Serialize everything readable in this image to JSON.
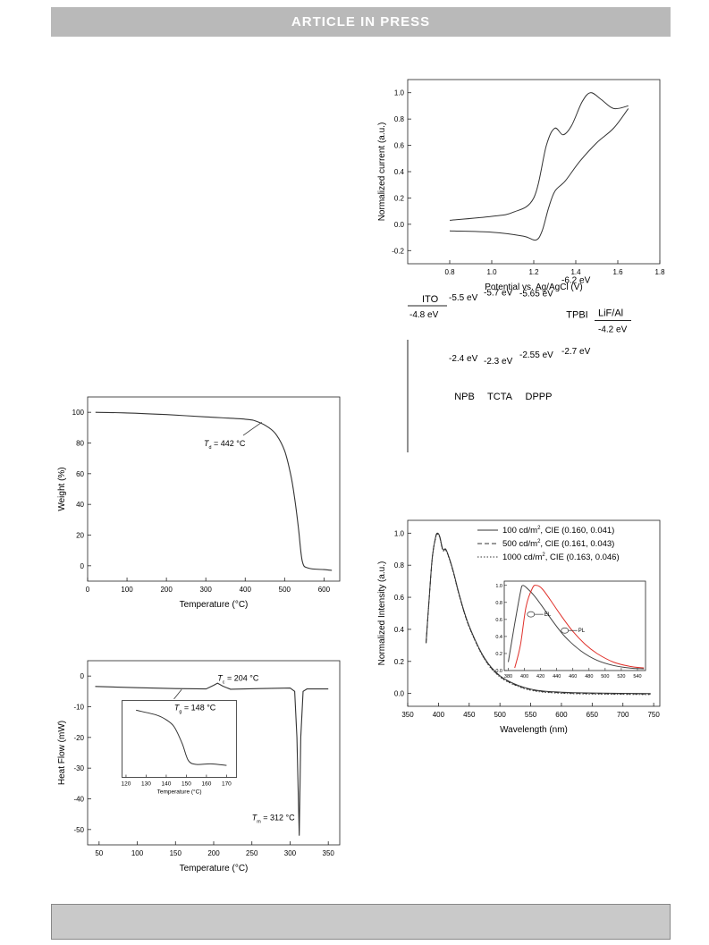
{
  "header": {
    "banner": "ARTICLE IN PRESS"
  },
  "charts": {
    "cv": {
      "type": "line",
      "xlabel": "Potential vs. Ag/AgCl (V)",
      "ylabel": "Normalized current (a.u.)",
      "xlim": [
        0.6,
        1.8
      ],
      "ylim": [
        -0.3,
        1.1
      ],
      "xticks": [
        "0.8",
        "1.0",
        "1.2",
        "1.4",
        "1.6",
        "1.8"
      ],
      "yticks": [
        "-0.2",
        "0.0",
        "0.2",
        "0.4",
        "0.6",
        "0.8",
        "1.0"
      ],
      "series": [
        {
          "values": [
            [
              0.8,
              0.03
            ],
            [
              1.0,
              0.06
            ],
            [
              1.1,
              0.09
            ],
            [
              1.2,
              0.2
            ],
            [
              1.26,
              0.6
            ],
            [
              1.3,
              0.73
            ],
            [
              1.34,
              0.68
            ],
            [
              1.38,
              0.75
            ],
            [
              1.43,
              0.93
            ],
            [
              1.47,
              1.0
            ],
            [
              1.52,
              0.95
            ],
            [
              1.58,
              0.88
            ],
            [
              1.65,
              0.9
            ]
          ]
        },
        {
          "values": [
            [
              1.65,
              0.88
            ],
            [
              1.58,
              0.73
            ],
            [
              1.5,
              0.62
            ],
            [
              1.42,
              0.48
            ],
            [
              1.35,
              0.33
            ],
            [
              1.3,
              0.25
            ],
            [
              1.27,
              0.12
            ],
            [
              1.24,
              -0.05
            ],
            [
              1.21,
              -0.12
            ],
            [
              1.15,
              -0.09
            ],
            [
              1.0,
              -0.06
            ],
            [
              0.8,
              -0.05
            ]
          ]
        }
      ]
    },
    "tga": {
      "type": "line",
      "xlabel": "Temperature (°C)",
      "ylabel": "Weight (%)",
      "xlim": [
        0,
        640
      ],
      "ylim": [
        -10,
        110
      ],
      "xticks": [
        "0",
        "100",
        "200",
        "300",
        "400",
        "500",
        "600"
      ],
      "yticks": [
        "0",
        "20",
        "40",
        "60",
        "80",
        "100"
      ],
      "annotation": {
        "label": "T",
        "sub": "d",
        "rest": " = 442 °C"
      },
      "series": [
        {
          "values": [
            [
              20,
              100
            ],
            [
              100,
              99.6
            ],
            [
              200,
              98.5
            ],
            [
              300,
              97
            ],
            [
              400,
              95.5
            ],
            [
              430,
              94
            ],
            [
              460,
              90
            ],
            [
              480,
              85
            ],
            [
              500,
              75
            ],
            [
              515,
              60
            ],
            [
              525,
              45
            ],
            [
              535,
              25
            ],
            [
              545,
              3
            ],
            [
              560,
              -1.5
            ],
            [
              600,
              -2.5
            ],
            [
              620,
              -3
            ]
          ]
        }
      ]
    },
    "dsc": {
      "type": "line",
      "xlabel": "Temperature (°C)",
      "ylabel": "Heat Flow (mW)",
      "xlim": [
        35,
        365
      ],
      "ylim": [
        -55,
        5
      ],
      "xticks": [
        "50",
        "100",
        "150",
        "200",
        "250",
        "300",
        "350"
      ],
      "yticks": [
        "0",
        "-10",
        "-20",
        "-30",
        "-40",
        "-50"
      ],
      "tc": {
        "label": "T",
        "sub": "c",
        "rest": " = 204 °C"
      },
      "tm": {
        "label": "T",
        "sub": "m",
        "rest": " = 312 °C"
      },
      "series": [
        {
          "values": [
            [
              45,
              -3.4
            ],
            [
              100,
              -3.8
            ],
            [
              150,
              -4.1
            ],
            [
              190,
              -4.2
            ],
            [
              200,
              -3
            ],
            [
              205,
              -2.3
            ],
            [
              212,
              -3.3
            ],
            [
              222,
              -4.3
            ],
            [
              260,
              -4.1
            ],
            [
              300,
              -3.9
            ],
            [
              306,
              -5
            ],
            [
              309,
              -20
            ],
            [
              312,
              -52
            ],
            [
              314,
              -20
            ],
            [
              317,
              -5
            ],
            [
              322,
              -4.2
            ],
            [
              350,
              -4.2
            ]
          ]
        }
      ],
      "inset": {
        "xlim": [
          118,
          175
        ],
        "ylim": [
          -28,
          -12
        ],
        "xticks": [
          "120",
          "130",
          "140",
          "150",
          "160",
          "170"
        ],
        "xlabel": "Temperature (°C)",
        "tg": {
          "label": "T",
          "sub": "g",
          "rest": " = 148 °C"
        },
        "values": [
          [
            125,
            -14
          ],
          [
            135,
            -15
          ],
          [
            140,
            -16
          ],
          [
            144,
            -17.5
          ],
          [
            148,
            -21
          ],
          [
            151,
            -24.5
          ],
          [
            155,
            -25.3
          ],
          [
            162,
            -25.2
          ],
          [
            170,
            -25.5
          ]
        ]
      }
    },
    "energy": {
      "type": "diagram",
      "layers": [
        {
          "name": "ITO",
          "top": "-4.8 eV",
          "bottom": ""
        },
        {
          "name": "NPB",
          "top": "-2.4 eV",
          "bottom": "-5.5 eV"
        },
        {
          "name": "TCTA",
          "top": "-2.3 eV",
          "bottom": "-5.7 eV"
        },
        {
          "name": "DPPP",
          "top": "-2.55 eV",
          "bottom": "-5.65 eV"
        },
        {
          "name": "TPBI",
          "top": "-2.7 eV",
          "bottom": "-6.2 eV"
        },
        {
          "name": "LiF/Al",
          "top": "-4.2 eV",
          "bottom": ""
        }
      ]
    },
    "el": {
      "type": "line",
      "xlabel": "Wavelength (nm)",
      "ylabel": "Normalized Intensity (a.u.)",
      "xlim": [
        350,
        760
      ],
      "ylim": [
        -0.08,
        1.08
      ],
      "xticks": [
        "350",
        "400",
        "450",
        "500",
        "550",
        "600",
        "650",
        "700",
        "750"
      ],
      "yticks": [
        "0.0",
        "0.2",
        "0.4",
        "0.6",
        "0.8",
        "1.0"
      ],
      "legend": [
        {
          "label": "100 cd/m",
          "sup": "2",
          "rest": ", CIE (0.160, 0.041)"
        },
        {
          "label": "500 cd/m",
          "sup": "2",
          "rest": ", CIE (0.161, 0.043)"
        },
        {
          "label": "1000 cd/m",
          "sup": "2",
          "rest": ", CIE (0.163, 0.046)"
        }
      ],
      "values": [
        [
          380,
          0.32
        ],
        [
          385,
          0.6
        ],
        [
          390,
          0.85
        ],
        [
          395,
          0.97
        ],
        [
          398,
          1.0
        ],
        [
          402,
          0.98
        ],
        [
          407,
          0.9
        ],
        [
          412,
          0.9
        ],
        [
          418,
          0.84
        ],
        [
          425,
          0.75
        ],
        [
          435,
          0.6
        ],
        [
          450,
          0.42
        ],
        [
          475,
          0.22
        ],
        [
          500,
          0.11
        ],
        [
          530,
          0.05
        ],
        [
          560,
          0.02
        ],
        [
          600,
          0.008
        ],
        [
          650,
          0.003
        ],
        [
          745,
          0.0
        ]
      ],
      "inset": {
        "xlim": [
          375,
          550
        ],
        "ylim": [
          0,
          1.05
        ],
        "xticks": [
          "380",
          "400",
          "420",
          "440",
          "460",
          "480",
          "500",
          "520",
          "540"
        ],
        "yticks": [
          "0.0",
          "0.2",
          "0.4",
          "0.6",
          "0.8",
          "1.0"
        ],
        "labels": [
          "EL",
          "PL"
        ],
        "el_values": [
          [
            380,
            0.1
          ],
          [
            388,
            0.55
          ],
          [
            395,
            0.92
          ],
          [
            398,
            1.0
          ],
          [
            405,
            0.95
          ],
          [
            412,
            0.88
          ],
          [
            420,
            0.78
          ],
          [
            435,
            0.58
          ],
          [
            450,
            0.4
          ],
          [
            470,
            0.23
          ],
          [
            490,
            0.12
          ],
          [
            510,
            0.06
          ],
          [
            530,
            0.03
          ],
          [
            548,
            0.02
          ]
        ],
        "pl_values": [
          [
            388,
            0.03
          ],
          [
            395,
            0.3
          ],
          [
            402,
            0.75
          ],
          [
            410,
            0.97
          ],
          [
            415,
            1.0
          ],
          [
            422,
            0.96
          ],
          [
            432,
            0.83
          ],
          [
            445,
            0.65
          ],
          [
            460,
            0.46
          ],
          [
            475,
            0.31
          ],
          [
            490,
            0.2
          ],
          [
            510,
            0.1
          ],
          [
            530,
            0.05
          ],
          [
            548,
            0.03
          ]
        ]
      }
    }
  }
}
